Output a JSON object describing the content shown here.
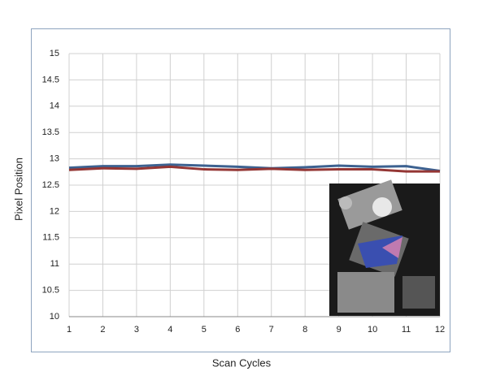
{
  "chart_data": {
    "type": "line",
    "x_label": "Scan Cycles",
    "y_label": "Pixel Position",
    "categories": [
      "1",
      "2",
      "3",
      "4",
      "5",
      "6",
      "7",
      "8",
      "9",
      "10",
      "11",
      "12"
    ],
    "series": [
      {
        "color": "#3c6190",
        "values": [
          12.83,
          12.86,
          12.86,
          12.89,
          12.87,
          12.85,
          12.82,
          12.84,
          12.87,
          12.85,
          12.86,
          12.77
        ]
      },
      {
        "color": "#943634",
        "values": [
          12.79,
          12.82,
          12.81,
          12.85,
          12.8,
          12.79,
          12.81,
          12.79,
          12.8,
          12.8,
          12.76,
          12.76
        ]
      }
    ],
    "ylim": [
      10,
      15
    ],
    "yticks": [
      10,
      10.5,
      11,
      11.5,
      12,
      12.5,
      13,
      13.5,
      14,
      14.5,
      15
    ],
    "grid": true
  }
}
